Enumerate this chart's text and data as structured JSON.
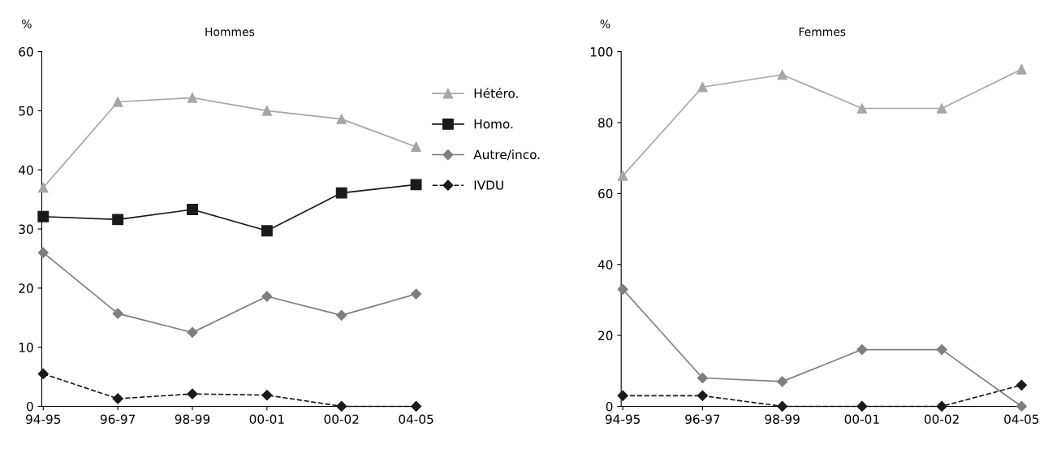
{
  "chart_data": [
    {
      "type": "line",
      "title": "Hommes",
      "ylabel": "%",
      "categories": [
        "94-95",
        "96-97",
        "98-99",
        "00-01",
        "00-02",
        "04-05"
      ],
      "ylim": [
        0,
        60
      ],
      "yticks": [
        0,
        10,
        20,
        30,
        40,
        50,
        60
      ],
      "grid": false,
      "legend": "right",
      "series": [
        {
          "name": "Hétéro.",
          "color": "#a6a6a6",
          "marker": "triangle",
          "line_style": "solid",
          "values": [
            37,
            51.5,
            52.2,
            50,
            48.6,
            43.9
          ]
        },
        {
          "name": "Homo.",
          "color": "#1a1a1a",
          "marker": "square",
          "line_style": "solid",
          "values": [
            32.1,
            31.6,
            33.3,
            29.7,
            36.1,
            37.5
          ]
        },
        {
          "name": "Autre/inco.",
          "color": "#7f7f7f",
          "marker": "diamond",
          "line_style": "solid",
          "values": [
            26,
            15.7,
            12.5,
            18.6,
            15.4,
            19
          ]
        },
        {
          "name": "IVDU",
          "color": "#1a1a1a",
          "marker": "diamond",
          "line_style": "dashed",
          "values": [
            5.5,
            1.3,
            2.1,
            1.9,
            0,
            0
          ]
        }
      ]
    },
    {
      "type": "line",
      "title": "Femmes",
      "ylabel": "%",
      "categories": [
        "94-95",
        "96-97",
        "98-99",
        "00-01",
        "00-02",
        "04-05"
      ],
      "ylim": [
        0,
        100
      ],
      "yticks": [
        0,
        20,
        40,
        60,
        80,
        100
      ],
      "grid": false,
      "series": [
        {
          "color": "#a6a6a6",
          "marker": "triangle",
          "line_style": "solid",
          "values": [
            65,
            90,
            93.5,
            84,
            84,
            95
          ]
        },
        {
          "color": "#7f7f7f",
          "marker": "diamond",
          "line_style": "solid",
          "values": [
            33,
            8,
            7,
            16,
            16,
            0
          ]
        },
        {
          "color": "#1a1a1a",
          "marker": "diamond",
          "line_style": "dashed",
          "values": [
            3,
            3,
            0,
            0,
            0,
            6
          ]
        }
      ]
    }
  ]
}
